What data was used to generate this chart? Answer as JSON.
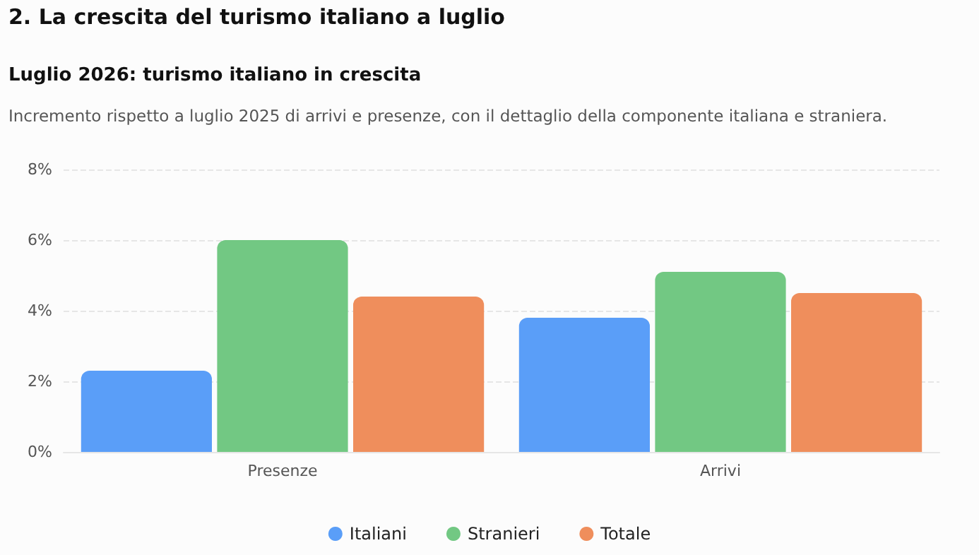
{
  "chart_data": {
    "type": "bar",
    "title": "2. La crescita del turismo italiano a luglio",
    "subtitle": "Luglio 2026: turismo italiano in crescita",
    "annotations": [
      "Incremento rispetto a luglio 2025 di arrivi e presenze, con il dettaglio della componente italiana e straniera."
    ],
    "categories": [
      "Presenze",
      "Arrivi"
    ],
    "series": [
      {
        "name": "Italiani",
        "color": "#5a9ef8",
        "values": [
          2.3,
          3.8
        ]
      },
      {
        "name": "Stranieri",
        "color": "#72c883",
        "values": [
          6.0,
          5.1
        ]
      },
      {
        "name": "Totale",
        "color": "#ef8e5c",
        "values": [
          4.4,
          4.5
        ]
      }
    ],
    "ylim": [
      0,
      8
    ],
    "yticks": [
      {
        "value": 0,
        "label": "0%"
      },
      {
        "value": 2,
        "label": "2%"
      },
      {
        "value": 4,
        "label": "4%"
      },
      {
        "value": 6,
        "label": "6%"
      },
      {
        "value": 8,
        "label": "8%"
      }
    ],
    "grid": "y",
    "legend": "bottom"
  }
}
